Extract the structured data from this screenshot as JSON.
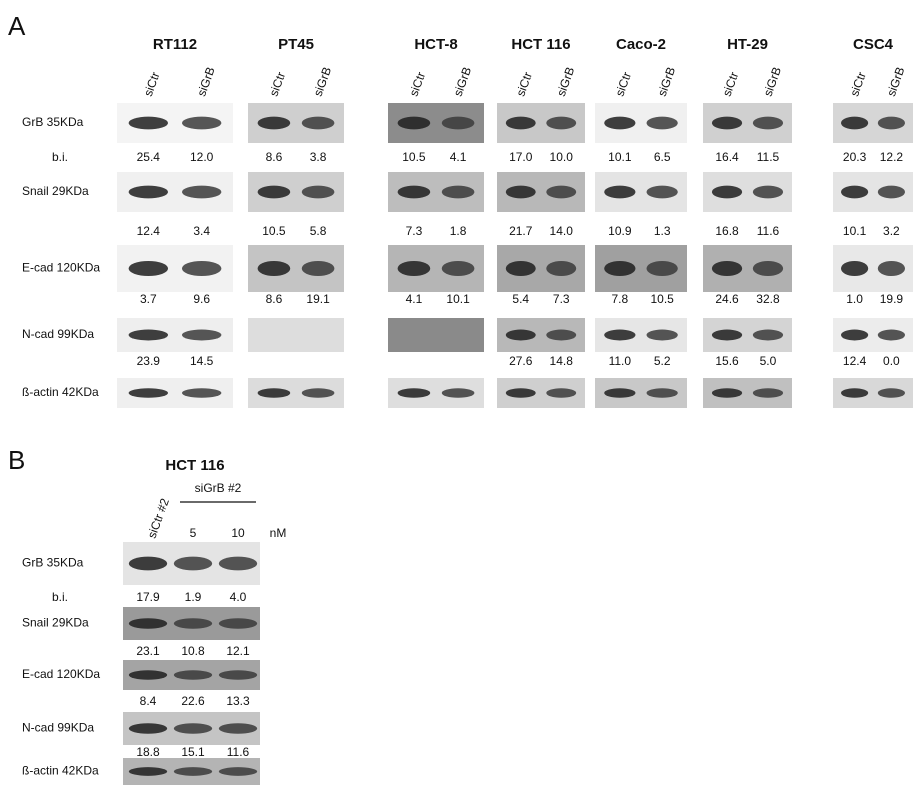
{
  "panel_a": {
    "label": "A",
    "bi_label": "b.i.",
    "cell_lines": [
      {
        "name": "RT112",
        "lanes": [
          "siCtr",
          "siGrB"
        ]
      },
      {
        "name": "PT45",
        "lanes": [
          "siCtr",
          "siGrB"
        ]
      },
      {
        "name": "HCT-8",
        "lanes": [
          "siCtr",
          "siGrB"
        ]
      },
      {
        "name": "HCT 116",
        "lanes": [
          "siCtr",
          "siGrB"
        ]
      },
      {
        "name": "Caco-2",
        "lanes": [
          "siCtr",
          "siGrB"
        ]
      },
      {
        "name": "HT-29",
        "lanes": [
          "siCtr",
          "siGrB"
        ]
      },
      {
        "name": "CSC4",
        "lanes": [
          "siCtr",
          "siGrB"
        ]
      }
    ],
    "rows": [
      {
        "label": "GrB 35KDa",
        "values": [
          [
            "25.4",
            "12.0"
          ],
          [
            "8.6",
            "3.8"
          ],
          [
            "10.5",
            "4.1"
          ],
          [
            "17.0",
            "10.0"
          ],
          [
            "10.1",
            "6.5"
          ],
          [
            "16.4",
            "11.5"
          ],
          [
            "20.3",
            "12.2"
          ]
        ]
      },
      {
        "label": "Snail 29KDa",
        "values": [
          [
            "12.4",
            "3.4"
          ],
          [
            "10.5",
            "5.8"
          ],
          [
            "7.3",
            "1.8"
          ],
          [
            "21.7",
            "14.0"
          ],
          [
            "10.9",
            "1.3"
          ],
          [
            "16.8",
            "11.6"
          ],
          [
            "10.1",
            "3.2"
          ]
        ]
      },
      {
        "label": "E-cad 120KDa",
        "values": [
          [
            "3.7",
            "9.6"
          ],
          [
            "8.6",
            "19.1"
          ],
          [
            "4.1",
            "10.1"
          ],
          [
            "5.4",
            "7.3"
          ],
          [
            "7.8",
            "10.5"
          ],
          [
            "24.6",
            "32.8"
          ],
          [
            "1.0",
            "19.9"
          ]
        ]
      },
      {
        "label": "N-cad 99KDa",
        "values": [
          [
            "23.9",
            "14.5"
          ],
          null,
          null,
          [
            "27.6",
            "14.8"
          ],
          [
            "11.0",
            "5.2"
          ],
          [
            "15.6",
            "5.0"
          ],
          [
            "12.4",
            "0.0"
          ]
        ]
      },
      {
        "label": "ß-actin 42KDa"
      }
    ]
  },
  "panel_b": {
    "label": "B",
    "title": "HCT 116",
    "control_lane": "siCtr #2",
    "treatment_group": "siGrB #2",
    "concentrations": [
      "5",
      "10"
    ],
    "unit": "nM",
    "bi_label": "b.i.",
    "rows": [
      {
        "label": "GrB 35KDa",
        "values": [
          "17.9",
          "1.9",
          "4.0"
        ]
      },
      {
        "label": "Snail 29KDa",
        "values": [
          "23.1",
          "10.8",
          "12.1"
        ]
      },
      {
        "label": "E-cad 120KDa",
        "values": [
          "8.4",
          "22.6",
          "13.3"
        ]
      },
      {
        "label": "N-cad 99KDa",
        "values": [
          "18.8",
          "15.1",
          "11.6"
        ]
      },
      {
        "label": "ß-actin 42KDa"
      }
    ]
  }
}
